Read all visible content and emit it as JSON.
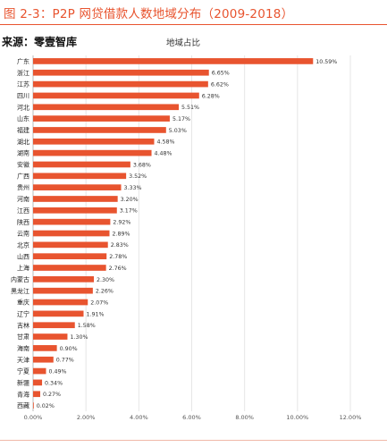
{
  "figure": {
    "title": "图 2-3：P2P 网贷借款人数地域分布（2009-2018）",
    "source": "来源：零壹智库"
  },
  "chart_data": {
    "type": "bar",
    "orientation": "horizontal",
    "title": "地域占比",
    "categories": [
      "广东",
      "浙江",
      "江苏",
      "四川",
      "河北",
      "山东",
      "福建",
      "湖北",
      "湖南",
      "安徽",
      "广西",
      "贵州",
      "河南",
      "江西",
      "陕西",
      "云南",
      "北京",
      "山西",
      "上海",
      "内蒙古",
      "黑龙江",
      "重庆",
      "辽宁",
      "吉林",
      "甘肃",
      "海南",
      "天津",
      "宁夏",
      "新疆",
      "青海",
      "西藏"
    ],
    "values": [
      10.59,
      6.65,
      6.62,
      6.28,
      5.51,
      5.17,
      5.03,
      4.58,
      4.48,
      3.68,
      3.52,
      3.33,
      3.2,
      3.17,
      2.92,
      2.89,
      2.83,
      2.78,
      2.76,
      2.3,
      2.26,
      2.07,
      1.91,
      1.58,
      1.3,
      0.9,
      0.77,
      0.49,
      0.34,
      0.27,
      0.02
    ],
    "value_labels": [
      "10.59%",
      "6.65%",
      "6.62%",
      "6.28%",
      "5.51%",
      "5.17%",
      "5.03%",
      "4.58%",
      "4.48%",
      "3.68%",
      "3.52%",
      "3.33%",
      "3.20%",
      "3.17%",
      "2.92%",
      "2.89%",
      "2.83%",
      "2.78%",
      "2.76%",
      "2.30%",
      "2.26%",
      "2.07%",
      "1.91%",
      "1.58%",
      "1.30%",
      "0.90%",
      "0.77%",
      "0.49%",
      "0.34%",
      "0.27%",
      "0.02%"
    ],
    "xlim": [
      0,
      12
    ],
    "xticks": [
      0,
      2,
      4,
      6,
      8,
      10,
      12
    ],
    "xtick_labels": [
      "0.00%",
      "2.00%",
      "4.00%",
      "6.00%",
      "8.00%",
      "10.00%",
      "12.00%"
    ],
    "grid": true,
    "bar_color": "#e8542f",
    "title_color": "#e8542f"
  }
}
